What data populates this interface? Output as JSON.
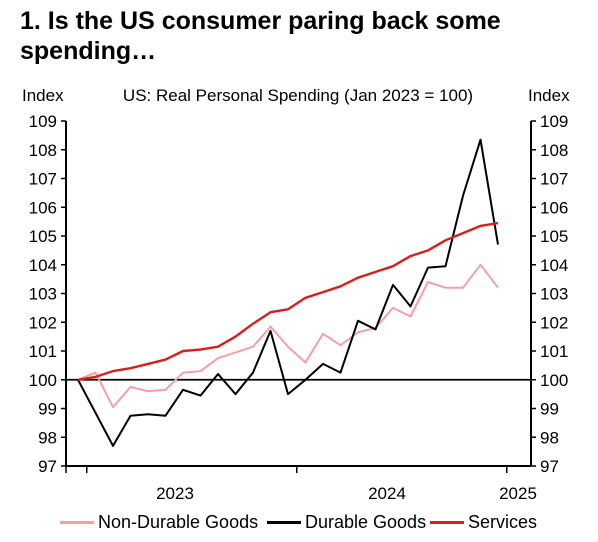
{
  "title": "1. Is the US consumer paring back some spending…",
  "chart_data": {
    "type": "line",
    "title": "US: Real Personal Spending (Jan 2023 = 100)",
    "ylabel_left": "Index",
    "ylabel_right": "Index",
    "ylim": [
      97,
      109
    ],
    "yticks": [
      97,
      98,
      99,
      100,
      101,
      102,
      103,
      104,
      105,
      106,
      107,
      108,
      109
    ],
    "xticks": [
      "2023",
      "2024",
      "2025"
    ],
    "x": [
      "2022-12",
      "2023-01",
      "2023-02",
      "2023-03",
      "2023-04",
      "2023-05",
      "2023-06",
      "2023-07",
      "2023-08",
      "2023-09",
      "2023-10",
      "2023-11",
      "2023-12",
      "2024-01",
      "2024-02",
      "2024-03",
      "2024-04",
      "2024-05",
      "2024-06",
      "2024-07",
      "2024-08",
      "2024-09",
      "2024-10",
      "2024-11",
      "2024-12",
      "2025-01"
    ],
    "baseline": 100,
    "series": [
      {
        "name": "Non-Durable Goods",
        "color": "#f4a0a6",
        "values": [
          100,
          100.25,
          99.05,
          99.75,
          99.6,
          99.65,
          100.25,
          100.3,
          100.75,
          100.95,
          101.15,
          101.85,
          101.15,
          100.6,
          101.6,
          101.2,
          101.65,
          101.8,
          102.5,
          102.2,
          103.4,
          103.2,
          103.2,
          104.0,
          103.2,
          null
        ]
      },
      {
        "name": "Durable Goods",
        "color": "#000000",
        "values": [
          100,
          98.85,
          97.7,
          98.75,
          98.8,
          98.75,
          99.65,
          99.45,
          100.2,
          99.5,
          100.25,
          101.7,
          99.5,
          100.0,
          100.55,
          100.25,
          102.05,
          101.75,
          103.3,
          102.55,
          103.9,
          103.95,
          106.4,
          108.35,
          104.7,
          null
        ]
      },
      {
        "name": "Services",
        "color": "#d81f1f",
        "values": [
          100,
          100.1,
          100.3,
          100.4,
          100.55,
          100.7,
          101.0,
          101.05,
          101.15,
          101.5,
          101.95,
          102.35,
          102.45,
          102.85,
          103.05,
          103.25,
          103.55,
          103.75,
          103.95,
          104.3,
          104.5,
          104.85,
          105.1,
          105.35,
          105.45,
          null
        ]
      }
    ],
    "legend_position": "bottom",
    "grid": false
  }
}
